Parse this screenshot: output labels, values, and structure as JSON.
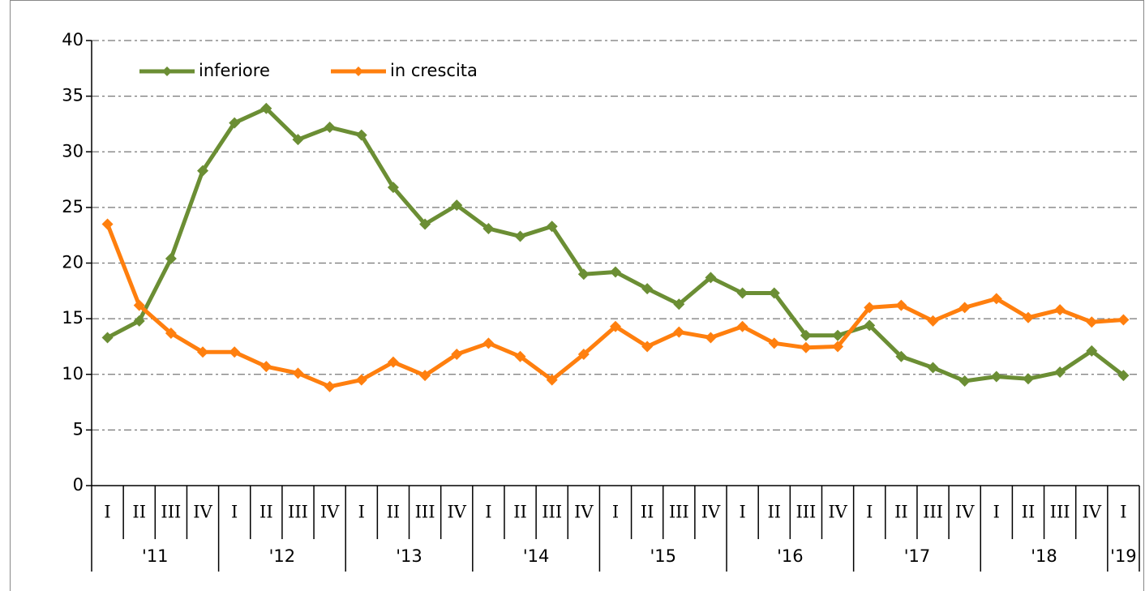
{
  "chart_data": {
    "type": "line",
    "groups": [
      {
        "label": "'11",
        "categories": [
          "I",
          "II",
          "III",
          "IV"
        ]
      },
      {
        "label": "'12",
        "categories": [
          "I",
          "II",
          "III",
          "IV"
        ]
      },
      {
        "label": "'13",
        "categories": [
          "I",
          "II",
          "III",
          "IV"
        ]
      },
      {
        "label": "'14",
        "categories": [
          "I",
          "II",
          "III",
          "IV"
        ]
      },
      {
        "label": "'15",
        "categories": [
          "I",
          "II",
          "III",
          "IV"
        ]
      },
      {
        "label": "'16",
        "categories": [
          "I",
          "II",
          "III",
          "IV"
        ]
      },
      {
        "label": "'17",
        "categories": [
          "I",
          "II",
          "III",
          "IV"
        ]
      },
      {
        "label": "'18",
        "categories": [
          "I",
          "II",
          "III",
          "IV"
        ]
      },
      {
        "label": "'19",
        "categories": [
          "I"
        ]
      }
    ],
    "series": [
      {
        "name": "inferiore",
        "color": "#6b8e34",
        "values": [
          13.3,
          14.8,
          20.4,
          28.3,
          32.6,
          33.9,
          31.1,
          32.2,
          31.5,
          26.8,
          23.5,
          25.2,
          23.1,
          22.4,
          23.3,
          19.0,
          19.2,
          17.7,
          16.3,
          18.7,
          17.3,
          17.3,
          13.5,
          13.5,
          14.4,
          11.6,
          10.6,
          9.4,
          9.8,
          9.6,
          10.2,
          12.1,
          9.9
        ]
      },
      {
        "name": "in crescita",
        "color": "#ff7f0e",
        "values": [
          23.5,
          16.2,
          13.7,
          12.0,
          12.0,
          10.7,
          10.1,
          8.9,
          9.5,
          11.1,
          9.9,
          11.8,
          12.8,
          11.6,
          9.5,
          11.8,
          14.3,
          12.5,
          13.8,
          13.3,
          14.3,
          12.8,
          12.4,
          12.5,
          16.0,
          16.2,
          14.8,
          16.0,
          16.8,
          15.1,
          15.8,
          14.7,
          14.9
        ]
      }
    ],
    "ylim": [
      0,
      40
    ],
    "yticks": [
      0,
      5,
      10,
      15,
      20,
      25,
      30,
      35,
      40
    ],
    "grid": true,
    "legend": "top-left"
  }
}
